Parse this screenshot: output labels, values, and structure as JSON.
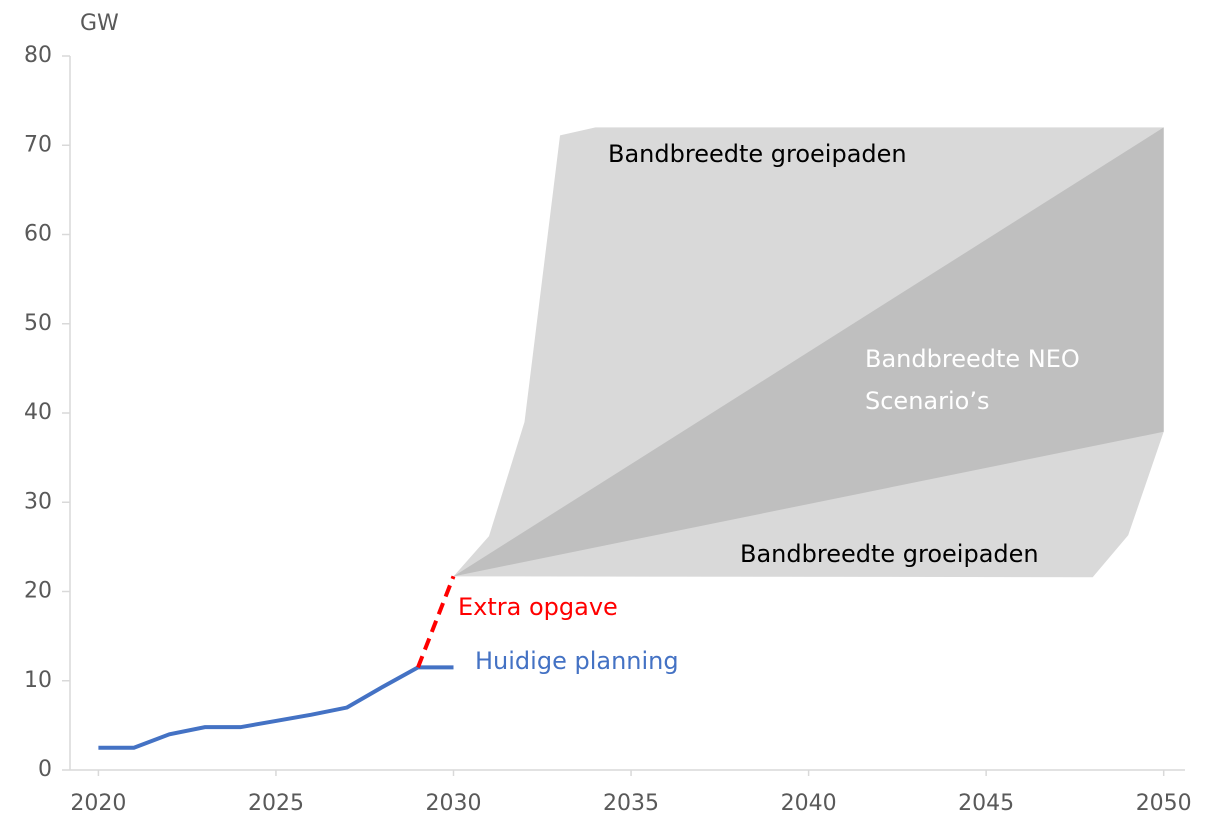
{
  "chart_data": {
    "type": "line",
    "y_label": "GW",
    "xlim": [
      2019.2,
      2050.6
    ],
    "xticks": [
      2020,
      2025,
      2030,
      2035,
      2040,
      2045,
      2050
    ],
    "ylim": [
      0,
      80
    ],
    "yticks": [
      0,
      10,
      20,
      30,
      40,
      50,
      60,
      70,
      80
    ],
    "grid": false,
    "areas": [
      {
        "color": "#d9d9d9",
        "x": [
          2030,
          2031,
          2032,
          2033,
          2034,
          2050,
          2050,
          2049,
          2048
        ],
        "values": [
          21.7,
          26.2,
          39,
          71.1,
          72,
          72,
          37.9,
          26.3,
          21.6
        ]
      },
      {
        "color": "#bfbfbf",
        "x": [
          2030,
          2050,
          2050
        ],
        "values": [
          21.7,
          72,
          37.9
        ]
      }
    ],
    "series": [
      {
        "name": "Huidige planning",
        "color": "#4472c4",
        "dashed": false,
        "x": [
          2020,
          2021,
          2022,
          2023,
          2024,
          2025,
          2026,
          2027,
          2028,
          2029,
          2030
        ],
        "values": [
          2.5,
          2.5,
          4,
          4.8,
          4.8,
          5.5,
          6.2,
          7,
          9.3,
          11.5,
          11.5
        ]
      },
      {
        "name": "Extra opgave",
        "color": "#ff0000",
        "dashed": true,
        "x": [
          2029,
          2030
        ],
        "values": [
          11.5,
          21.7
        ]
      }
    ],
    "annotations": [
      "Bandbreedte groeipaden",
      "Bandbreedte NEO",
      "Scenario’s",
      "Bandbreedte groeipaden"
    ]
  }
}
